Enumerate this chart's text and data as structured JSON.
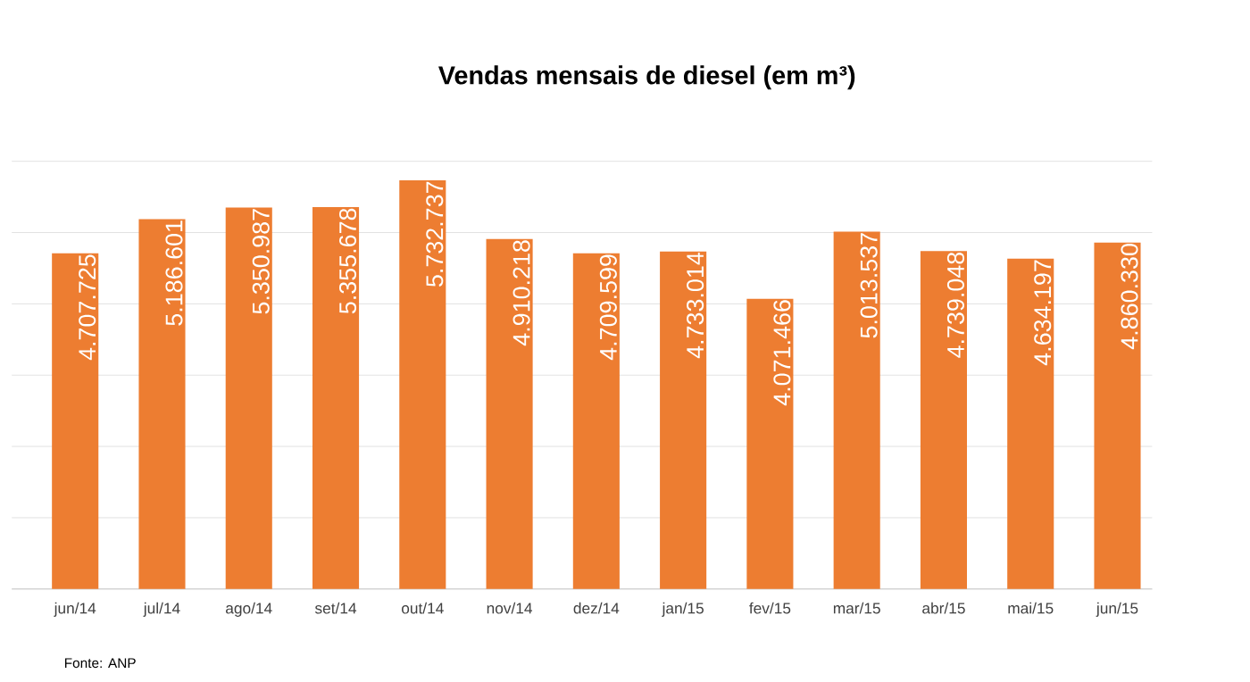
{
  "chart_data": {
    "type": "bar",
    "title": "Vendas mensais de diesel (em m³)",
    "categories": [
      "jun/14",
      "jul/14",
      "ago/14",
      "set/14",
      "out/14",
      "nov/14",
      "dez/14",
      "jan/15",
      "fev/15",
      "mar/15",
      "abr/15",
      "mai/15",
      "jun/15"
    ],
    "values": [
      4707725,
      5186601,
      5350987,
      5355678,
      5732737,
      4910218,
      4709599,
      4733014,
      4071466,
      5013537,
      4739048,
      4634197,
      4860330
    ],
    "value_labels": [
      "4.707.725",
      "5.186.601",
      "5.350.987",
      "5.355.678",
      "5.732.737",
      "4.910.218",
      "4.709.599",
      "4.733.014",
      "4.071.466",
      "5.013.537",
      "4.739.048",
      "4.634.197",
      "4.860.330"
    ],
    "color": "#ed7d31",
    "grid": "y",
    "tick_labels": "x",
    "annotations": [
      "Fonte: ANP"
    ]
  }
}
